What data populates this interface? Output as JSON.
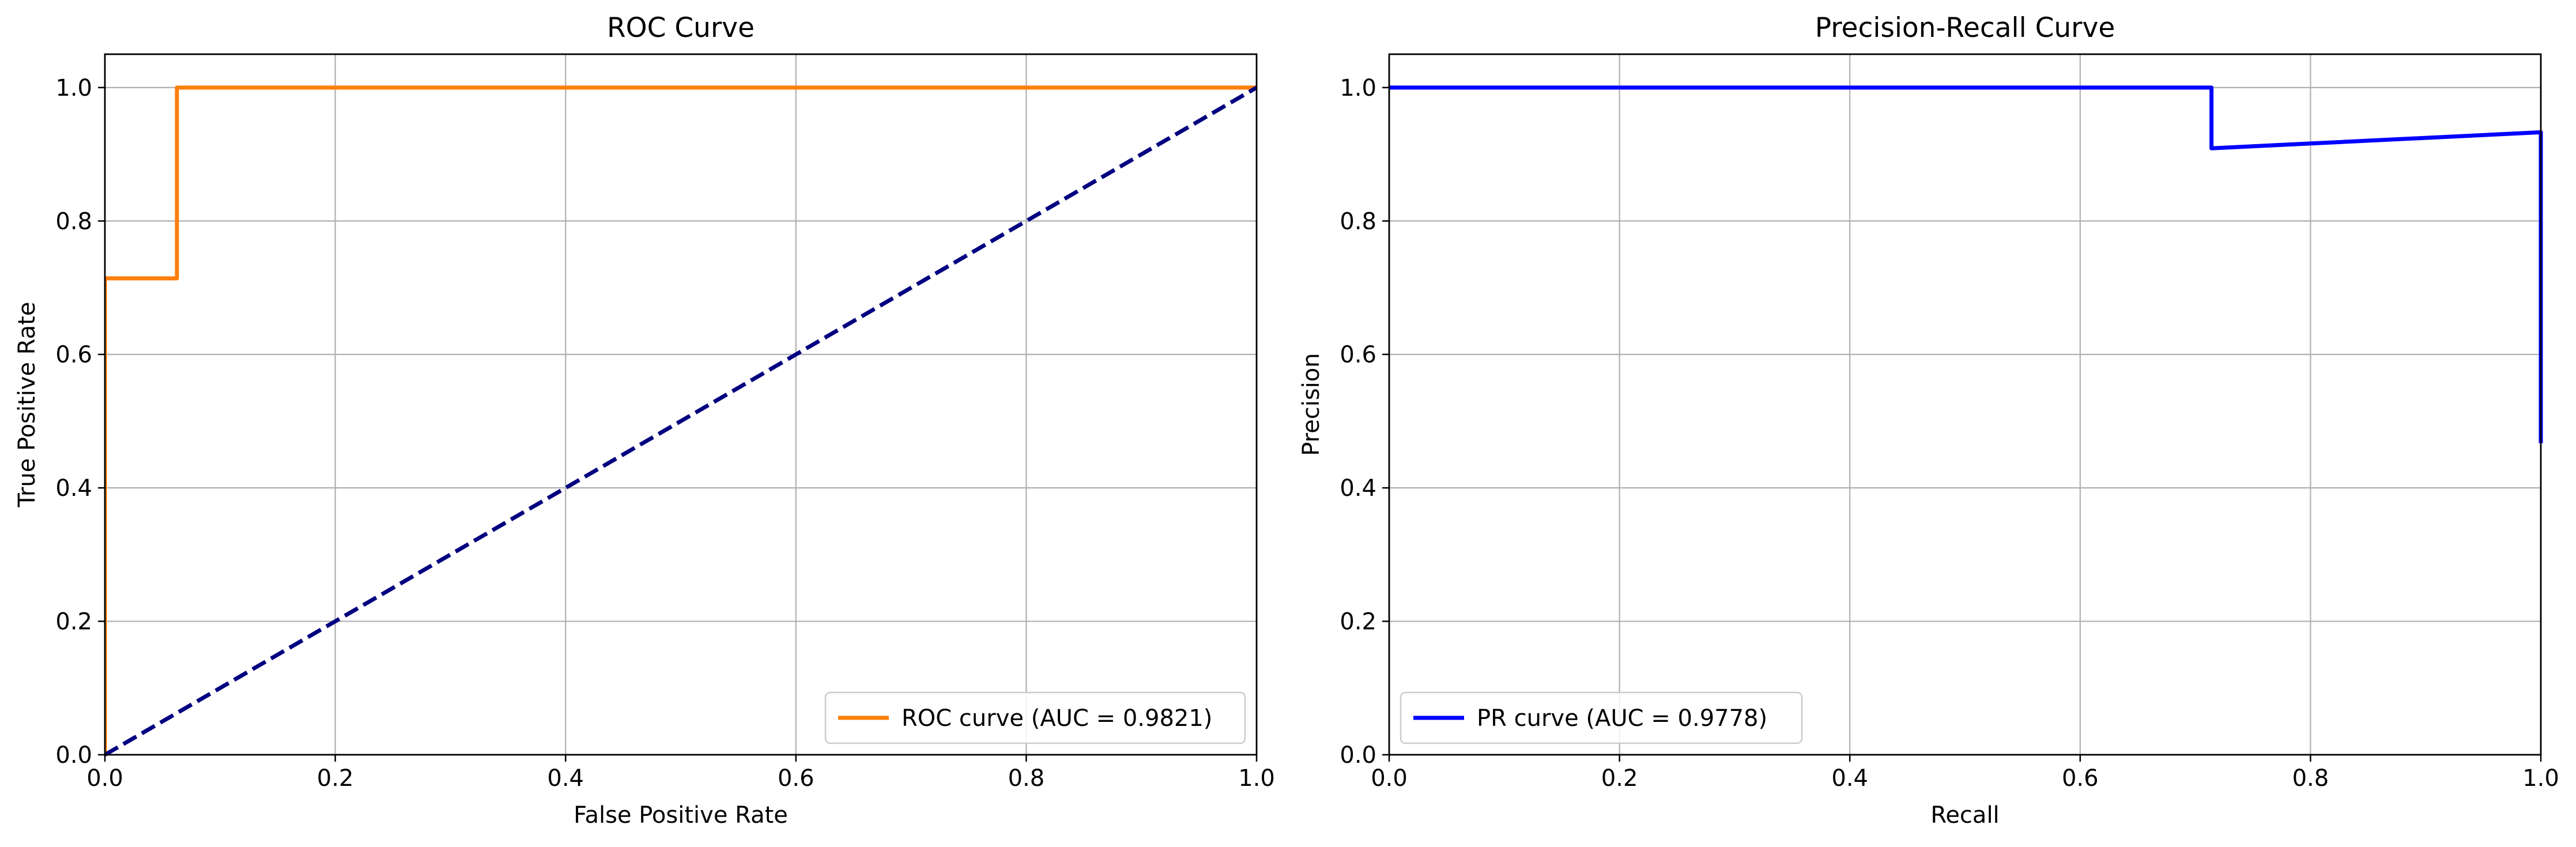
{
  "chart_data": [
    {
      "type": "line",
      "title": "ROC Curve",
      "xlabel": "False Positive Rate",
      "ylabel": "True Positive Rate",
      "xlim": [
        0,
        1
      ],
      "ylim": [
        0,
        1.05
      ],
      "xticks": [
        "0.0",
        "0.2",
        "0.4",
        "0.6",
        "0.8",
        "1.0"
      ],
      "yticks": [
        "0.0",
        "0.2",
        "0.4",
        "0.6",
        "0.8",
        "1.0"
      ],
      "grid": true,
      "legend_position": "lower right",
      "series": [
        {
          "name": "ROC curve (AUC = 0.9821)",
          "color": "#ff7f0e",
          "style": "solid",
          "x": [
            0,
            0,
            0.0625,
            0.0625,
            1.0
          ],
          "y": [
            0,
            0.714,
            0.714,
            1.0,
            1.0
          ]
        },
        {
          "name": "",
          "color": "#000080",
          "style": "dashed",
          "x": [
            0,
            1
          ],
          "y": [
            0,
            1
          ]
        }
      ]
    },
    {
      "type": "line",
      "title": "Precision-Recall Curve",
      "xlabel": "Recall",
      "ylabel": "Precision",
      "xlim": [
        0,
        1
      ],
      "ylim": [
        0,
        1.05
      ],
      "xticks": [
        "0.0",
        "0.2",
        "0.4",
        "0.6",
        "0.8",
        "1.0"
      ],
      "yticks": [
        "0.0",
        "0.2",
        "0.4",
        "0.6",
        "0.8",
        "1.0"
      ],
      "grid": true,
      "legend_position": "lower left",
      "series": [
        {
          "name": "PR curve (AUC = 0.9778)",
          "color": "#0000ff",
          "style": "solid",
          "x": [
            0,
            0.714,
            0.714,
            1.0,
            1.0
          ],
          "y": [
            1.0,
            1.0,
            0.909,
            0.933,
            0.467
          ]
        }
      ]
    }
  ]
}
